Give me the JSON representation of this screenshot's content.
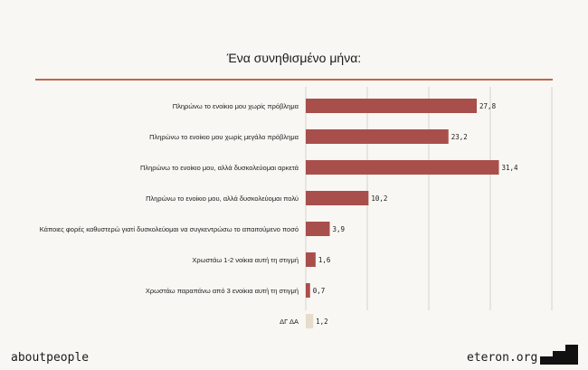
{
  "chart_data": {
    "type": "bar",
    "orientation": "horizontal",
    "title": "Ένα συνηθισμένο μήνα:",
    "categories": [
      "Πληρώνω το ενοίκιο μου χωρίς πρόβλημα",
      "Πληρώνω το ενοίκιο μου χωρίς μεγάλο πρόβλημα",
      "Πληρώνω το ενοίκιο μου, αλλά δυσκολεύομαι αρκετά",
      "Πληρώνω το ενοίκιο μου, αλλά δυσκολεύομαι πολύ",
      "Κάποιες φορές καθυστερώ γιατί δυσκολεύομαι να συγκεντρώσω  το απαιτούμενο ποσό",
      "Χρωστάω 1-2 νοίκια αυτή τη στιγμή",
      "Χρωστάω παραπάνω από 3 ενοίκια αυτή τη στιγμή",
      "ΔΓ ΔΑ"
    ],
    "values": [
      27.8,
      23.2,
      31.4,
      10.2,
      3.9,
      1.6,
      0.7,
      1.2
    ],
    "value_labels": [
      "27,8",
      "23,2",
      "31,4",
      "10,2",
      "3,9",
      "1,6",
      "0,7",
      "1,2"
    ],
    "colors": [
      "#a94f4b",
      "#a94f4b",
      "#a94f4b",
      "#a94f4b",
      "#a94f4b",
      "#a94f4b",
      "#a94f4b",
      "#e6dccb"
    ],
    "xlim": [
      0,
      40
    ],
    "grid": true
  },
  "footer": {
    "left": "aboutpeople",
    "right": "eteron.org"
  },
  "icons": {
    "logo": "eteron-logo-icon"
  }
}
